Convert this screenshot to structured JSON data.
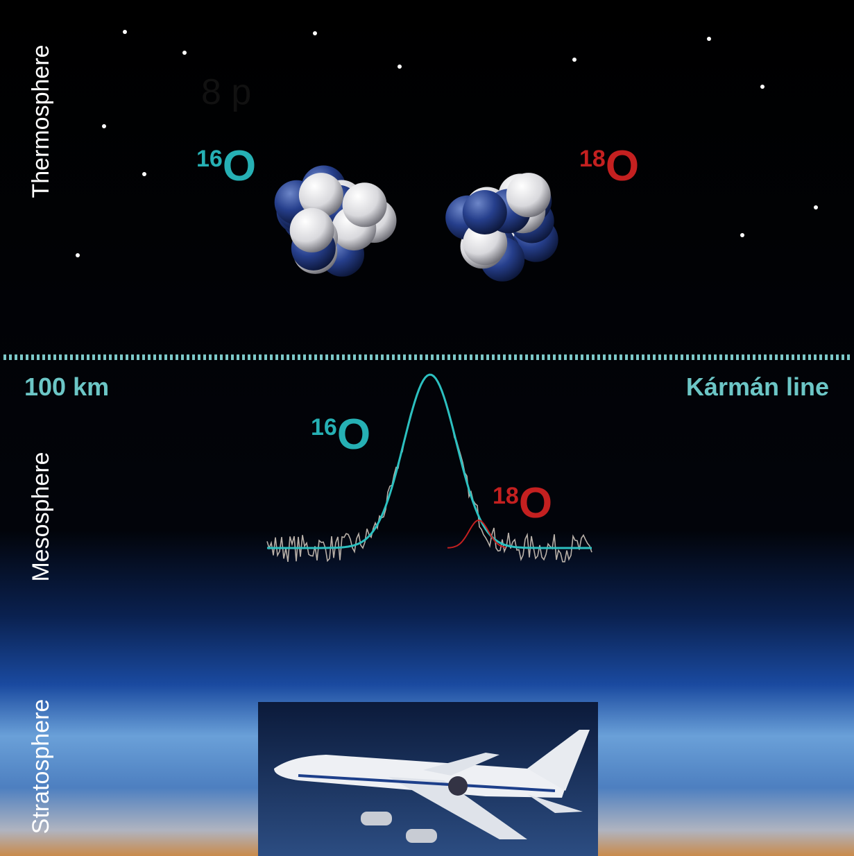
{
  "layers": [
    "Thermosphere",
    "Mesosphere",
    "Stratosphere"
  ],
  "boundary": {
    "altitude": "100 km",
    "name": "Kármán line"
  },
  "faint_text": "8 p",
  "nuclei": [
    {
      "mass": "16",
      "symbol": "O"
    },
    {
      "mass": "18",
      "symbol": "O"
    }
  ],
  "spectrum": {
    "labels": [
      {
        "mass": "16",
        "symbol": "O"
      },
      {
        "mass": "18",
        "symbol": "O"
      }
    ]
  }
}
